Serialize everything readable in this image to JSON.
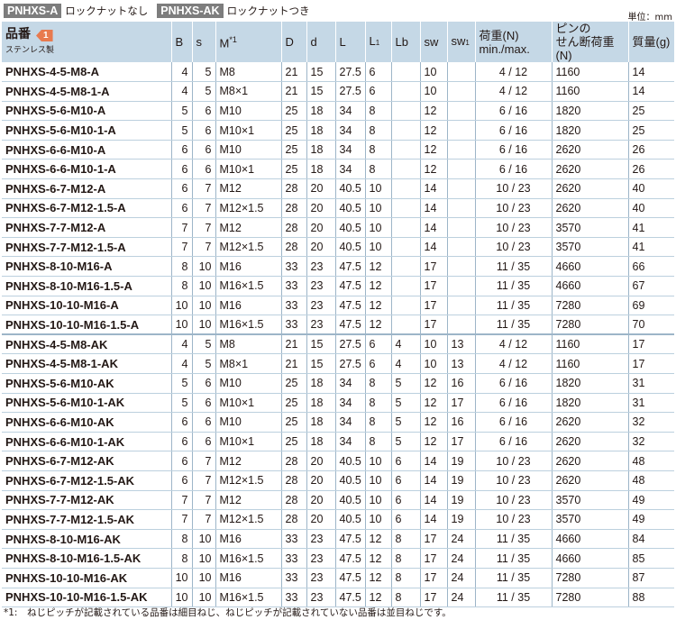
{
  "header": {
    "tag_a": "PNHXS-A",
    "tag_a_text": "ロックナットなし",
    "tag_ak": "PNHXS-AK",
    "tag_ak_text": "ロックナットつき",
    "unit": "単位：mm"
  },
  "columns": {
    "part": "品番",
    "part_badge": "1",
    "part_sub": "ステンレス製",
    "b": "B",
    "s": "s",
    "m": "M",
    "m_sup": "*1",
    "d_big": "D",
    "d": "d",
    "l": "L",
    "l1": "L",
    "l1_sub": "1",
    "lb": "Lb",
    "sw": "sw",
    "sw1": "sw",
    "sw1_sub": "1",
    "load1": "荷重(N)",
    "load2": "min./max.",
    "pin1": "ピンの",
    "pin2": "せん断荷重(N)",
    "mass": "質量(g)"
  },
  "rows": [
    [
      "PNHXS-4-5-M8-A",
      "4",
      "5",
      "M8",
      "21",
      "15",
      "27.5",
      "6",
      "",
      "10",
      "",
      "4 / 12",
      "1160",
      "14"
    ],
    [
      "PNHXS-4-5-M8-1-A",
      "4",
      "5",
      "M8×1",
      "21",
      "15",
      "27.5",
      "6",
      "",
      "10",
      "",
      "4 / 12",
      "1160",
      "14"
    ],
    [
      "PNHXS-5-6-M10-A",
      "5",
      "6",
      "M10",
      "25",
      "18",
      "34",
      "8",
      "",
      "12",
      "",
      "6 / 16",
      "1820",
      "25"
    ],
    [
      "PNHXS-5-6-M10-1-A",
      "5",
      "6",
      "M10×1",
      "25",
      "18",
      "34",
      "8",
      "",
      "12",
      "",
      "6 / 16",
      "1820",
      "25"
    ],
    [
      "PNHXS-6-6-M10-A",
      "6",
      "6",
      "M10",
      "25",
      "18",
      "34",
      "8",
      "",
      "12",
      "",
      "6 / 16",
      "2620",
      "26"
    ],
    [
      "PNHXS-6-6-M10-1-A",
      "6",
      "6",
      "M10×1",
      "25",
      "18",
      "34",
      "8",
      "",
      "12",
      "",
      "6 / 16",
      "2620",
      "26"
    ],
    [
      "PNHXS-6-7-M12-A",
      "6",
      "7",
      "M12",
      "28",
      "20",
      "40.5",
      "10",
      "",
      "14",
      "",
      "10 / 23",
      "2620",
      "40"
    ],
    [
      "PNHXS-6-7-M12-1.5-A",
      "6",
      "7",
      "M12×1.5",
      "28",
      "20",
      "40.5",
      "10",
      "",
      "14",
      "",
      "10 / 23",
      "2620",
      "40"
    ],
    [
      "PNHXS-7-7-M12-A",
      "7",
      "7",
      "M12",
      "28",
      "20",
      "40.5",
      "10",
      "",
      "14",
      "",
      "10 / 23",
      "3570",
      "41"
    ],
    [
      "PNHXS-7-7-M12-1.5-A",
      "7",
      "7",
      "M12×1.5",
      "28",
      "20",
      "40.5",
      "10",
      "",
      "14",
      "",
      "10 / 23",
      "3570",
      "41"
    ],
    [
      "PNHXS-8-10-M16-A",
      "8",
      "10",
      "M16",
      "33",
      "23",
      "47.5",
      "12",
      "",
      "17",
      "",
      "11 / 35",
      "4660",
      "66"
    ],
    [
      "PNHXS-8-10-M16-1.5-A",
      "8",
      "10",
      "M16×1.5",
      "33",
      "23",
      "47.5",
      "12",
      "",
      "17",
      "",
      "11 / 35",
      "4660",
      "67"
    ],
    [
      "PNHXS-10-10-M16-A",
      "10",
      "10",
      "M16",
      "33",
      "23",
      "47.5",
      "12",
      "",
      "17",
      "",
      "11 / 35",
      "7280",
      "69"
    ],
    [
      "PNHXS-10-10-M16-1.5-A",
      "10",
      "10",
      "M16×1.5",
      "33",
      "23",
      "47.5",
      "12",
      "",
      "17",
      "",
      "11 / 35",
      "7280",
      "70"
    ],
    [
      "PNHXS-4-5-M8-AK",
      "4",
      "5",
      "M8",
      "21",
      "15",
      "27.5",
      "6",
      "4",
      "10",
      "13",
      "4 / 12",
      "1160",
      "17"
    ],
    [
      "PNHXS-4-5-M8-1-AK",
      "4",
      "5",
      "M8×1",
      "21",
      "15",
      "27.5",
      "6",
      "4",
      "10",
      "13",
      "4 / 12",
      "1160",
      "17"
    ],
    [
      "PNHXS-5-6-M10-AK",
      "5",
      "6",
      "M10",
      "25",
      "18",
      "34",
      "8",
      "5",
      "12",
      "16",
      "6 / 16",
      "1820",
      "31"
    ],
    [
      "PNHXS-5-6-M10-1-AK",
      "5",
      "6",
      "M10×1",
      "25",
      "18",
      "34",
      "8",
      "5",
      "12",
      "17",
      "6 / 16",
      "1820",
      "31"
    ],
    [
      "PNHXS-6-6-M10-AK",
      "6",
      "6",
      "M10",
      "25",
      "18",
      "34",
      "8",
      "5",
      "12",
      "16",
      "6 / 16",
      "2620",
      "32"
    ],
    [
      "PNHXS-6-6-M10-1-AK",
      "6",
      "6",
      "M10×1",
      "25",
      "18",
      "34",
      "8",
      "5",
      "12",
      "17",
      "6 / 16",
      "2620",
      "32"
    ],
    [
      "PNHXS-6-7-M12-AK",
      "6",
      "7",
      "M12",
      "28",
      "20",
      "40.5",
      "10",
      "6",
      "14",
      "19",
      "10 / 23",
      "2620",
      "48"
    ],
    [
      "PNHXS-6-7-M12-1.5-AK",
      "6",
      "7",
      "M12×1.5",
      "28",
      "20",
      "40.5",
      "10",
      "6",
      "14",
      "19",
      "10 / 23",
      "2620",
      "48"
    ],
    [
      "PNHXS-7-7-M12-AK",
      "7",
      "7",
      "M12",
      "28",
      "20",
      "40.5",
      "10",
      "6",
      "14",
      "19",
      "10 / 23",
      "3570",
      "49"
    ],
    [
      "PNHXS-7-7-M12-1.5-AK",
      "7",
      "7",
      "M12×1.5",
      "28",
      "20",
      "40.5",
      "10",
      "6",
      "14",
      "19",
      "10 / 23",
      "3570",
      "49"
    ],
    [
      "PNHXS-8-10-M16-AK",
      "8",
      "10",
      "M16",
      "33",
      "23",
      "47.5",
      "12",
      "8",
      "17",
      "24",
      "11 / 35",
      "4660",
      "84"
    ],
    [
      "PNHXS-8-10-M16-1.5-AK",
      "8",
      "10",
      "M16×1.5",
      "33",
      "23",
      "47.5",
      "12",
      "8",
      "17",
      "24",
      "11 / 35",
      "4660",
      "85"
    ],
    [
      "PNHXS-10-10-M16-AK",
      "10",
      "10",
      "M16",
      "33",
      "23",
      "47.5",
      "12",
      "8",
      "17",
      "24",
      "11 / 35",
      "7280",
      "87"
    ],
    [
      "PNHXS-10-10-M16-1.5-AK",
      "10",
      "10",
      "M16×1.5",
      "33",
      "23",
      "47.5",
      "12",
      "8",
      "17",
      "24",
      "11 / 35",
      "7280",
      "88"
    ]
  ],
  "footnote": "*1:　ねじピッチが記載されている品番は細目ねじ、ねじピッチが記載されていない品番は並目ねじです。"
}
